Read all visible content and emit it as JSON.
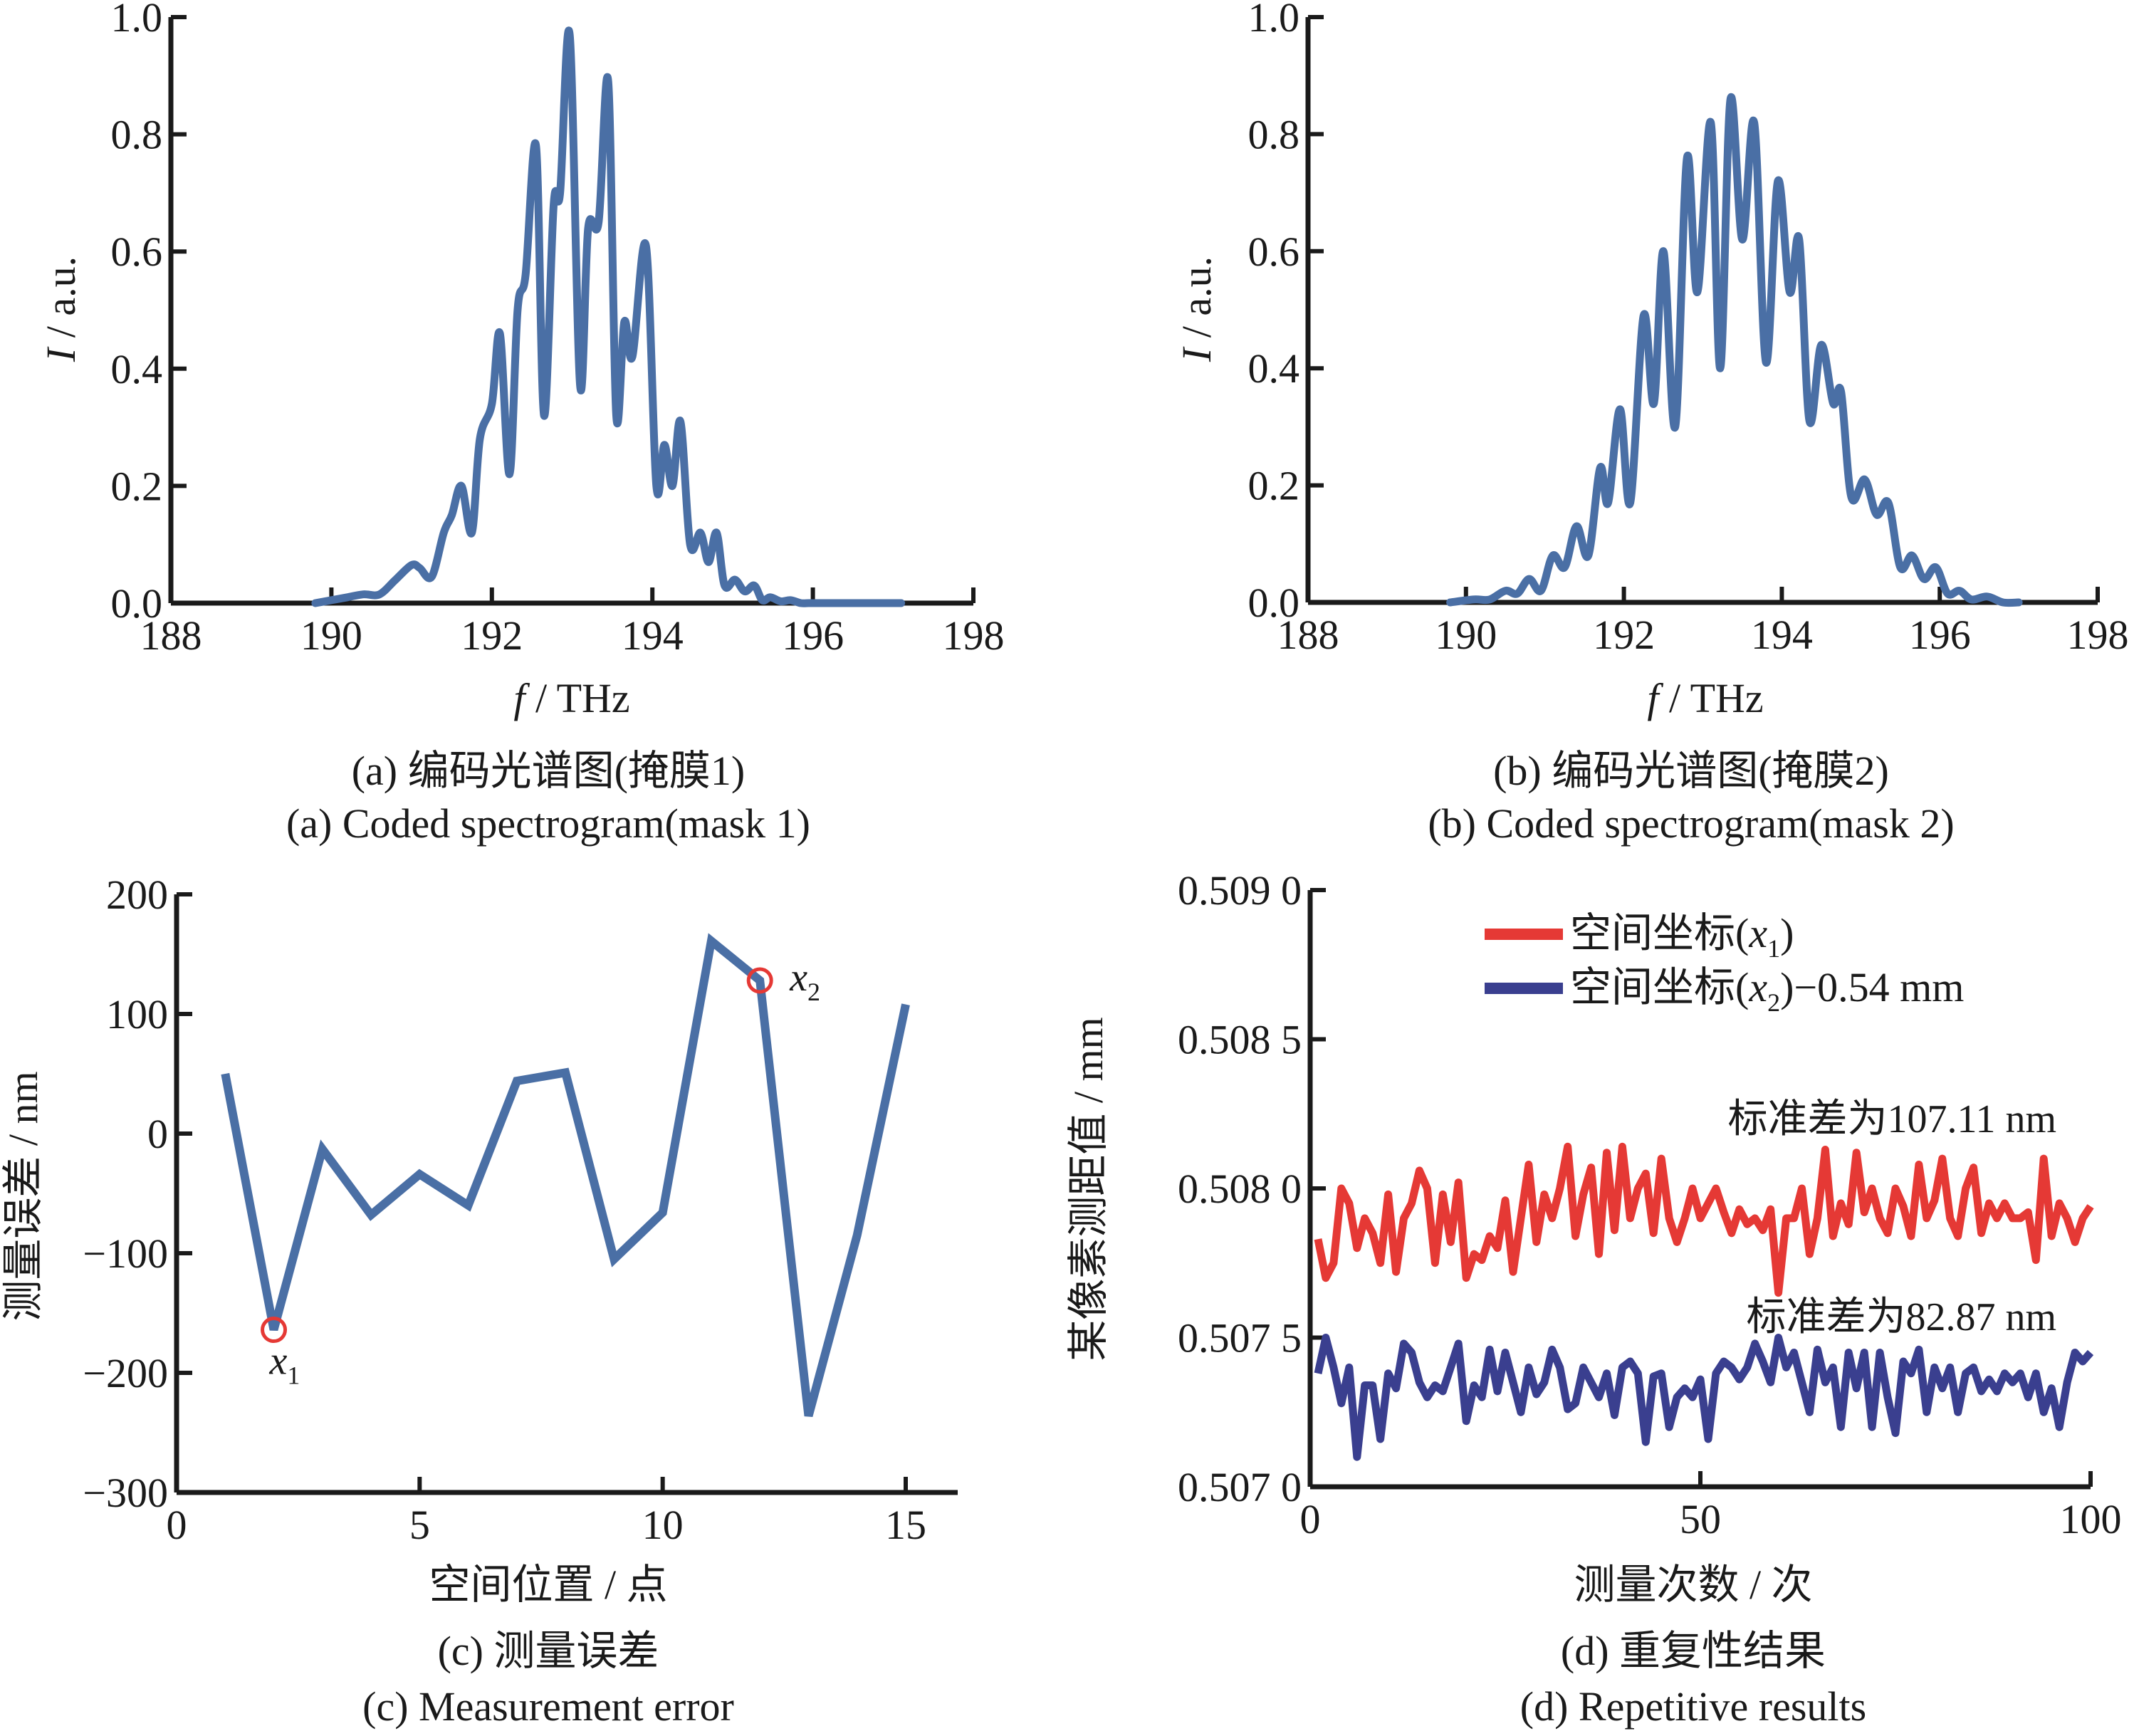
{
  "chart_data": [
    {
      "id": "a",
      "type": "line",
      "xlabel_var": "f",
      "xlabel_unit": " / THz",
      "ylabel_var": "I",
      "ylabel_unit": " / a.u.",
      "caption_cn": "(a) 编码光谱图(掩膜1)",
      "caption_en": "(a) Coded spectrogram(mask 1)",
      "xlim": [
        188,
        198
      ],
      "ylim": [
        0,
        1.0
      ],
      "xticks": [
        "188",
        "190",
        "192",
        "194",
        "196",
        "198"
      ],
      "yticks": [
        "0.0",
        "0.2",
        "0.4",
        "0.6",
        "0.8",
        "1.0"
      ],
      "color": "#4a6fa5",
      "series": [
        {
          "name": "mask 1",
          "x": [
            189.8,
            190.0,
            190.2,
            190.4,
            190.6,
            190.8,
            191.0,
            191.1,
            191.25,
            191.4,
            191.5,
            191.62,
            191.75,
            191.85,
            192.0,
            192.1,
            192.22,
            192.32,
            192.42,
            192.55,
            192.65,
            192.77,
            192.85,
            192.97,
            193.1,
            193.2,
            193.33,
            193.45,
            193.55,
            193.65,
            193.75,
            193.92,
            194.05,
            194.15,
            194.25,
            194.35,
            194.47,
            194.6,
            194.7,
            194.8,
            194.9,
            195.03,
            195.15,
            195.27,
            195.37,
            195.47,
            195.6,
            195.72,
            195.85,
            195.95,
            196.05,
            196.2,
            196.35,
            196.5,
            196.7,
            196.9,
            197.1
          ],
          "y": [
            0.0,
            0.005,
            0.01,
            0.015,
            0.015,
            0.04,
            0.065,
            0.06,
            0.045,
            0.12,
            0.15,
            0.2,
            0.12,
            0.28,
            0.34,
            0.46,
            0.22,
            0.5,
            0.56,
            0.78,
            0.32,
            0.68,
            0.7,
            0.97,
            0.37,
            0.64,
            0.65,
            0.89,
            0.32,
            0.48,
            0.42,
            0.61,
            0.2,
            0.27,
            0.2,
            0.31,
            0.1,
            0.12,
            0.07,
            0.12,
            0.03,
            0.04,
            0.02,
            0.03,
            0.005,
            0.01,
            0.003,
            0.005,
            0.0,
            0.0,
            0.0,
            0.0,
            0.0,
            0.0,
            0.0,
            0.0,
            0.0
          ]
        }
      ]
    },
    {
      "id": "b",
      "type": "line",
      "xlabel_var": "f",
      "xlabel_unit": " / THz",
      "ylabel_var": "I",
      "ylabel_unit": " / a.u.",
      "caption_cn": "(b) 编码光谱图(掩膜2)",
      "caption_en": "(b) Coded spectrogram(mask 2)",
      "xlim": [
        188,
        198
      ],
      "ylim": [
        0,
        1.0
      ],
      "xticks": [
        "188",
        "190",
        "192",
        "194",
        "196",
        "198"
      ],
      "yticks": [
        "0.0",
        "0.2",
        "0.4",
        "0.6",
        "0.8",
        "1.0"
      ],
      "color": "#4a6fa5",
      "series": [
        {
          "name": "mask 2",
          "x": [
            189.8,
            190.1,
            190.3,
            190.5,
            190.65,
            190.8,
            190.95,
            191.1,
            191.25,
            191.4,
            191.55,
            191.7,
            191.8,
            191.95,
            192.08,
            192.25,
            192.38,
            192.5,
            192.65,
            192.8,
            192.93,
            193.1,
            193.22,
            193.35,
            193.5,
            193.65,
            193.8,
            193.95,
            194.1,
            194.22,
            194.35,
            194.5,
            194.65,
            194.75,
            194.88,
            195.05,
            195.2,
            195.35,
            195.5,
            195.65,
            195.8,
            195.95,
            196.1,
            196.25,
            196.4,
            196.6,
            196.8,
            197.0
          ],
          "y": [
            0.0,
            0.005,
            0.005,
            0.02,
            0.015,
            0.04,
            0.02,
            0.08,
            0.06,
            0.13,
            0.08,
            0.23,
            0.17,
            0.33,
            0.17,
            0.49,
            0.34,
            0.6,
            0.3,
            0.76,
            0.53,
            0.82,
            0.4,
            0.86,
            0.62,
            0.82,
            0.41,
            0.72,
            0.53,
            0.62,
            0.31,
            0.44,
            0.34,
            0.36,
            0.18,
            0.21,
            0.15,
            0.17,
            0.06,
            0.08,
            0.04,
            0.06,
            0.015,
            0.02,
            0.005,
            0.01,
            0.0,
            0.0
          ]
        }
      ]
    },
    {
      "id": "c",
      "type": "line",
      "xlabel": "空间位置 / 点",
      "ylabel": "测量误差 / nm",
      "caption_cn": "(c) 测量误差",
      "caption_en": "(c) Measurement error",
      "xlim": [
        0,
        16
      ],
      "ylim": [
        -300,
        200
      ],
      "xticks": [
        "0",
        "5",
        "10",
        "15"
      ],
      "yticks": [
        "−300",
        "−200",
        "−100",
        "0",
        "100",
        "200"
      ],
      "color": "#4a6fa5",
      "marker_color": "#e53935",
      "series": [
        {
          "name": "error",
          "x": [
            1,
            2,
            3,
            4,
            5,
            6,
            7,
            8,
            9,
            10,
            11,
            12,
            13,
            14,
            15
          ],
          "y": [
            50,
            -164,
            -13,
            -68,
            -34,
            -60,
            44,
            51,
            -105,
            -66,
            161,
            128,
            -236,
            -85,
            108
          ]
        }
      ],
      "annotations": [
        {
          "label": "x",
          "sub": "1",
          "x": 2,
          "y": -164
        },
        {
          "label": "x",
          "sub": "2",
          "x": 12,
          "y": 128
        }
      ]
    },
    {
      "id": "d",
      "type": "line",
      "xlabel": "测量次数 / 次",
      "ylabel": "某像素测距值 / mm",
      "caption_cn": "(d) 重复性结果",
      "caption_en": "(d) Repetitive results",
      "xlim": [
        0,
        100
      ],
      "ylim": [
        0.507,
        0.509
      ],
      "xticks": [
        "0",
        "50",
        "100"
      ],
      "yticks": [
        "0.507 0",
        "0.507 5",
        "0.508 0",
        "0.508 5",
        "0.509 0"
      ],
      "legend_position": "top-right",
      "series": [
        {
          "name": "空间坐标(x1)",
          "name_pre": "空间坐标(",
          "name_var": "x",
          "name_sub": "1",
          "name_post": ")",
          "color": "#e53935",
          "y": [
            0.50783,
            0.5077,
            0.50775,
            0.508,
            0.50795,
            0.5078,
            0.5079,
            0.50785,
            0.50775,
            0.50798,
            0.50772,
            0.5079,
            0.50795,
            0.50806,
            0.508,
            0.50775,
            0.50798,
            0.50782,
            0.50802,
            0.5077,
            0.50778,
            0.50776,
            0.50784,
            0.5078,
            0.50796,
            0.50772,
            0.5079,
            0.50808,
            0.50782,
            0.50798,
            0.5079,
            0.508,
            0.50814,
            0.50784,
            0.50798,
            0.50807,
            0.50778,
            0.50812,
            0.50786,
            0.50814,
            0.5079,
            0.508,
            0.50805,
            0.50785,
            0.5081,
            0.5079,
            0.50782,
            0.5079,
            0.508,
            0.5079,
            0.50795,
            0.508,
            0.50792,
            0.50785,
            0.50793,
            0.50788,
            0.5079,
            0.50786,
            0.50793,
            0.50765,
            0.5079,
            0.5079,
            0.508,
            0.50778,
            0.5079,
            0.50813,
            0.50784,
            0.50795,
            0.50788,
            0.50812,
            0.50792,
            0.508,
            0.5079,
            0.50785,
            0.508,
            0.50794,
            0.50784,
            0.50808,
            0.5079,
            0.50796,
            0.5081,
            0.5079,
            0.50784,
            0.508,
            0.50807,
            0.50785,
            0.50795,
            0.5079,
            0.50795,
            0.5079,
            0.5079,
            0.50792,
            0.50776,
            0.5081,
            0.50784,
            0.50795,
            0.5079,
            0.50782,
            0.5079,
            0.50794
          ]
        },
        {
          "name": "空间坐标(x2)−0.54 mm",
          "name_pre": "空间坐标(",
          "name_var": "x",
          "name_sub": "2",
          "name_post": ")−0.54 mm",
          "color": "#3a3f8f",
          "y": [
            0.50738,
            0.5075,
            0.5074,
            0.50728,
            0.5074,
            0.5071,
            0.50734,
            0.50734,
            0.50716,
            0.50738,
            0.50733,
            0.50748,
            0.50745,
            0.50735,
            0.5073,
            0.50734,
            0.50732,
            0.5074,
            0.50748,
            0.50722,
            0.50734,
            0.5073,
            0.50746,
            0.50732,
            0.50745,
            0.50735,
            0.50725,
            0.5074,
            0.50731,
            0.50735,
            0.50746,
            0.5074,
            0.50726,
            0.50728,
            0.5074,
            0.50735,
            0.5073,
            0.50738,
            0.50724,
            0.5074,
            0.50742,
            0.50738,
            0.50715,
            0.50737,
            0.50738,
            0.5072,
            0.5073,
            0.50733,
            0.5073,
            0.50736,
            0.50716,
            0.50738,
            0.50742,
            0.5074,
            0.50736,
            0.5074,
            0.50748,
            0.50742,
            0.50735,
            0.5075,
            0.5074,
            0.50745,
            0.50735,
            0.50725,
            0.50746,
            0.50735,
            0.5074,
            0.5072,
            0.50745,
            0.50733,
            0.50745,
            0.5072,
            0.50745,
            0.5073,
            0.50718,
            0.50742,
            0.50738,
            0.50746,
            0.50725,
            0.5074,
            0.50733,
            0.5074,
            0.50725,
            0.50738,
            0.5074,
            0.50732,
            0.50736,
            0.50732,
            0.50738,
            0.50735,
            0.50738,
            0.5073,
            0.50738,
            0.50725,
            0.50733,
            0.5072,
            0.50735,
            0.50745,
            0.50742,
            0.50745
          ]
        }
      ],
      "annotations": [
        {
          "text": "标准差为107.11 nm",
          "target_series": 0
        },
        {
          "text": "标准差为82.87 nm",
          "target_series": 1
        }
      ]
    }
  ]
}
